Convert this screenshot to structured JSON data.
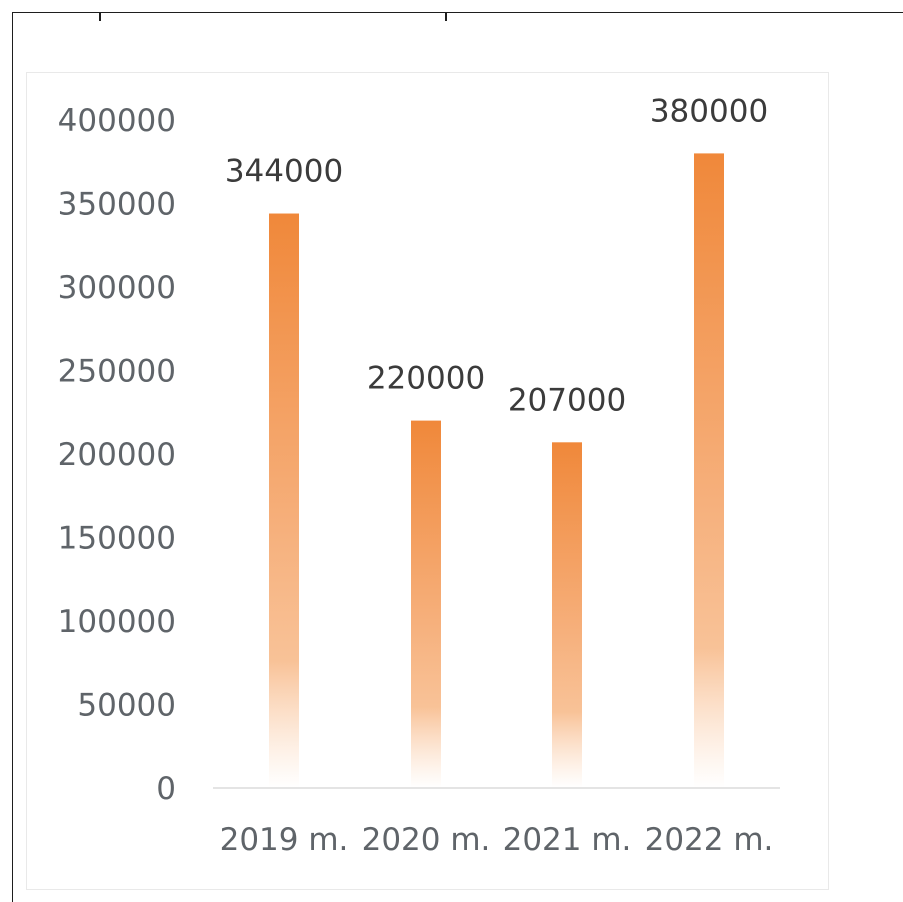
{
  "chart_data": {
    "type": "bar",
    "categories": [
      "2019 m.",
      "2020 m.",
      "2021 m.",
      "2022 m."
    ],
    "values": [
      344000,
      220000,
      207000,
      380000
    ],
    "data_labels": [
      "344000",
      "220000",
      "207000",
      "380000"
    ],
    "yticks": [
      0,
      50000,
      100000,
      150000,
      200000,
      250000,
      300000,
      350000,
      400000
    ],
    "ylim": [
      0,
      400000
    ],
    "grid": false,
    "legend": "none",
    "bar_color_top": "#f0883a",
    "bar_color_mid": "#f7b98a"
  }
}
